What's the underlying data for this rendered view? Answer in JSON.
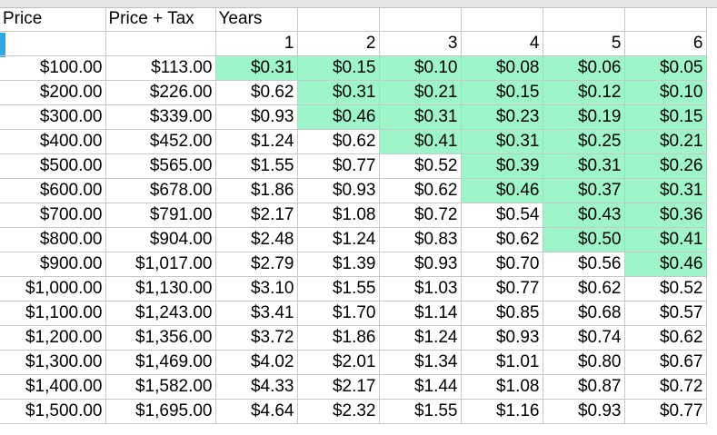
{
  "colors": {
    "highlight": "#9ef5c9",
    "grid": "#c8c8c8",
    "row_marker": "#2ea7e8"
  },
  "header_row": [
    "Price",
    "Price + Tax",
    "Years",
    "",
    "",
    "",
    "",
    ""
  ],
  "year_row": [
    "",
    "",
    "1",
    "2",
    "3",
    "4",
    "5",
    "6"
  ],
  "rows": [
    {
      "cells": [
        "$100.00",
        "$113.00",
        "$0.31",
        "$0.15",
        "$0.10",
        "$0.08",
        "$0.06",
        "$0.05"
      ],
      "highlight": [
        true,
        true,
        true,
        true,
        true,
        true
      ]
    },
    {
      "cells": [
        "$200.00",
        "$226.00",
        "$0.62",
        "$0.31",
        "$0.21",
        "$0.15",
        "$0.12",
        "$0.10"
      ],
      "highlight": [
        false,
        true,
        true,
        true,
        true,
        true
      ]
    },
    {
      "cells": [
        "$300.00",
        "$339.00",
        "$0.93",
        "$0.46",
        "$0.31",
        "$0.23",
        "$0.19",
        "$0.15"
      ],
      "highlight": [
        false,
        true,
        true,
        true,
        true,
        true
      ]
    },
    {
      "cells": [
        "$400.00",
        "$452.00",
        "$1.24",
        "$0.62",
        "$0.41",
        "$0.31",
        "$0.25",
        "$0.21"
      ],
      "highlight": [
        false,
        false,
        true,
        true,
        true,
        true
      ]
    },
    {
      "cells": [
        "$500.00",
        "$565.00",
        "$1.55",
        "$0.77",
        "$0.52",
        "$0.39",
        "$0.31",
        "$0.26"
      ],
      "highlight": [
        false,
        false,
        false,
        true,
        true,
        true
      ]
    },
    {
      "cells": [
        "$600.00",
        "$678.00",
        "$1.86",
        "$0.93",
        "$0.62",
        "$0.46",
        "$0.37",
        "$0.31"
      ],
      "highlight": [
        false,
        false,
        false,
        true,
        true,
        true
      ]
    },
    {
      "cells": [
        "$700.00",
        "$791.00",
        "$2.17",
        "$1.08",
        "$0.72",
        "$0.54",
        "$0.43",
        "$0.36"
      ],
      "highlight": [
        false,
        false,
        false,
        false,
        true,
        true
      ]
    },
    {
      "cells": [
        "$800.00",
        "$904.00",
        "$2.48",
        "$1.24",
        "$0.83",
        "$0.62",
        "$0.50",
        "$0.41"
      ],
      "highlight": [
        false,
        false,
        false,
        false,
        true,
        true
      ]
    },
    {
      "cells": [
        "$900.00",
        "$1,017.00",
        "$2.79",
        "$1.39",
        "$0.93",
        "$0.70",
        "$0.56",
        "$0.46"
      ],
      "highlight": [
        false,
        false,
        false,
        false,
        false,
        true
      ]
    },
    {
      "cells": [
        "$1,000.00",
        "$1,130.00",
        "$3.10",
        "$1.55",
        "$1.03",
        "$0.77",
        "$0.62",
        "$0.52"
      ],
      "highlight": [
        false,
        false,
        false,
        false,
        false,
        false
      ]
    },
    {
      "cells": [
        "$1,100.00",
        "$1,243.00",
        "$3.41",
        "$1.70",
        "$1.14",
        "$0.85",
        "$0.68",
        "$0.57"
      ],
      "highlight": [
        false,
        false,
        false,
        false,
        false,
        false
      ]
    },
    {
      "cells": [
        "$1,200.00",
        "$1,356.00",
        "$3.72",
        "$1.86",
        "$1.24",
        "$0.93",
        "$0.74",
        "$0.62"
      ],
      "highlight": [
        false,
        false,
        false,
        false,
        false,
        false
      ]
    },
    {
      "cells": [
        "$1,300.00",
        "$1,469.00",
        "$4.02",
        "$2.01",
        "$1.34",
        "$1.01",
        "$0.80",
        "$0.67"
      ],
      "highlight": [
        false,
        false,
        false,
        false,
        false,
        false
      ]
    },
    {
      "cells": [
        "$1,400.00",
        "$1,582.00",
        "$4.33",
        "$2.17",
        "$1.44",
        "$1.08",
        "$0.87",
        "$0.72"
      ],
      "highlight": [
        false,
        false,
        false,
        false,
        false,
        false
      ]
    },
    {
      "cells": [
        "$1,500.00",
        "$1,695.00",
        "$4.64",
        "$2.32",
        "$1.55",
        "$1.16",
        "$0.93",
        "$0.77"
      ],
      "highlight": [
        false,
        false,
        false,
        false,
        false,
        false
      ]
    }
  ]
}
